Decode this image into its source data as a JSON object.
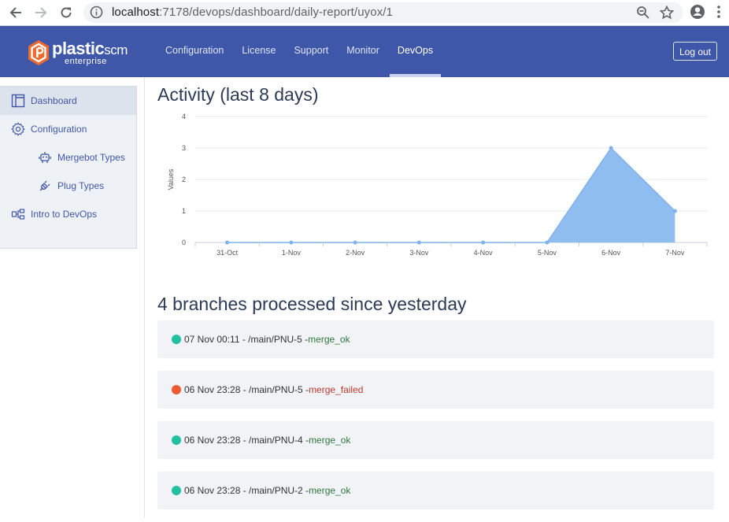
{
  "browser": {
    "url_host": "localhost",
    "url_path": ":7178/devops/dashboard/daily-report/uyox/1"
  },
  "header": {
    "logo_text": "plastic",
    "logo_scm": "scm",
    "logo_sub": "enterprise",
    "nav": [
      "Configuration",
      "License",
      "Support",
      "Monitor",
      "DevOps"
    ],
    "active_nav": "DevOps",
    "logout_label": "Log out"
  },
  "sidebar": {
    "items": [
      {
        "label": "Dashboard",
        "icon": "dashboard-icon"
      },
      {
        "label": "Configuration",
        "icon": "gear-icon"
      },
      {
        "label": "Mergebot Types",
        "icon": "robot-icon"
      },
      {
        "label": "Plug Types",
        "icon": "plug-icon"
      },
      {
        "label": "Intro to DevOps",
        "icon": "flow-icon"
      }
    ]
  },
  "activity": {
    "title": "Activity (last 8 days)"
  },
  "chart_data": {
    "type": "area",
    "title": "Activity (last 8 days)",
    "xlabel": "",
    "ylabel": "Values",
    "categories": [
      "31-Oct",
      "1-Nov",
      "2-Nov",
      "3-Nov",
      "4-Nov",
      "5-Nov",
      "6-Nov",
      "7-Nov"
    ],
    "values": [
      0,
      0,
      0,
      0,
      0,
      0,
      3,
      1
    ],
    "ylim": [
      0,
      4
    ],
    "yticks": [
      0,
      1,
      2,
      3,
      4
    ],
    "grid": true,
    "fill_color": "#90bdf0",
    "line_color": "#7fb2ec"
  },
  "branches": {
    "title": "4 branches processed since yesterday",
    "rows": [
      {
        "text": "07 Nov 00:11 - /main/PNU-5 - ",
        "status": "merge_ok",
        "state": "ok"
      },
      {
        "text": "06 Nov 23:28 - /main/PNU-5 - ",
        "status": "merge_failed",
        "state": "fail"
      },
      {
        "text": "06 Nov 23:28 - /main/PNU-4 - ",
        "status": "merge_ok",
        "state": "ok"
      },
      {
        "text": "06 Nov 23:28 - /main/PNU-2 - ",
        "status": "merge_ok",
        "state": "ok"
      }
    ]
  },
  "colors": {
    "header_bg": "#3f57a8",
    "ok": "#20c0a0",
    "fail": "#ee5a33"
  }
}
